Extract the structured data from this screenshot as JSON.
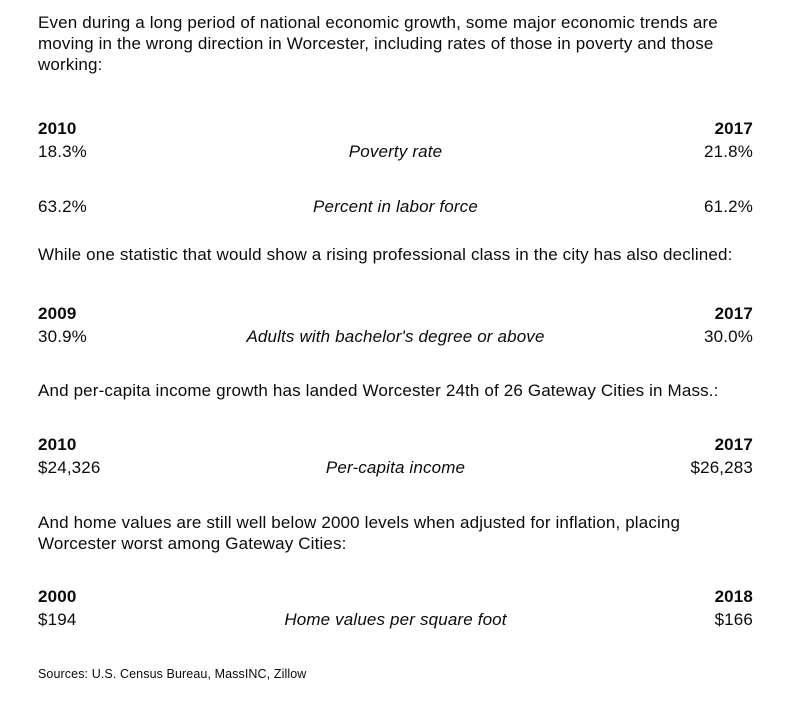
{
  "page": {
    "paragraph1": "Even during a long period of national economic growth, some major economic trends are moving in the wrong direction in Worcester, including rates of those in poverty and those working:",
    "paragraph2": "While one statistic that would show a rising professional class in the city has also declined:",
    "paragraph3": "And per-capita income growth has landed Worcester 24th of 26 Gateway Cities in Mass.:",
    "paragraph4": "And home values are still well below 2000 levels when adjusted for inflation, placing Worcester worst among Gateway Cities:",
    "sources": "Sources: U.S. Census Bureau, MassINC, Zillow"
  },
  "text_color": "#0b0b0b",
  "background_color": "#ffffff",
  "tables": [
    {
      "year_start": "2010",
      "year_end": "2017",
      "rows": [
        {
          "start": "18.3%",
          "label": "Poverty rate",
          "end": "21.8%"
        },
        {
          "start": "63.2%",
          "label": "Percent in labor force",
          "end": "61.2%"
        }
      ]
    },
    {
      "year_start": "2009",
      "year_end": "2017",
      "rows": [
        {
          "start": "30.9%",
          "label": "Adults with bachelor's degree or above",
          "end": "30.0%"
        }
      ]
    },
    {
      "year_start": "2010",
      "year_end": "2017",
      "rows": [
        {
          "start": "$24,326",
          "label": "Per-capita income",
          "end": "$26,283"
        }
      ]
    },
    {
      "year_start": "2000",
      "year_end": "2018",
      "rows": [
        {
          "start": "$194",
          "label": "Home values per square foot",
          "end": "$166"
        }
      ]
    }
  ]
}
